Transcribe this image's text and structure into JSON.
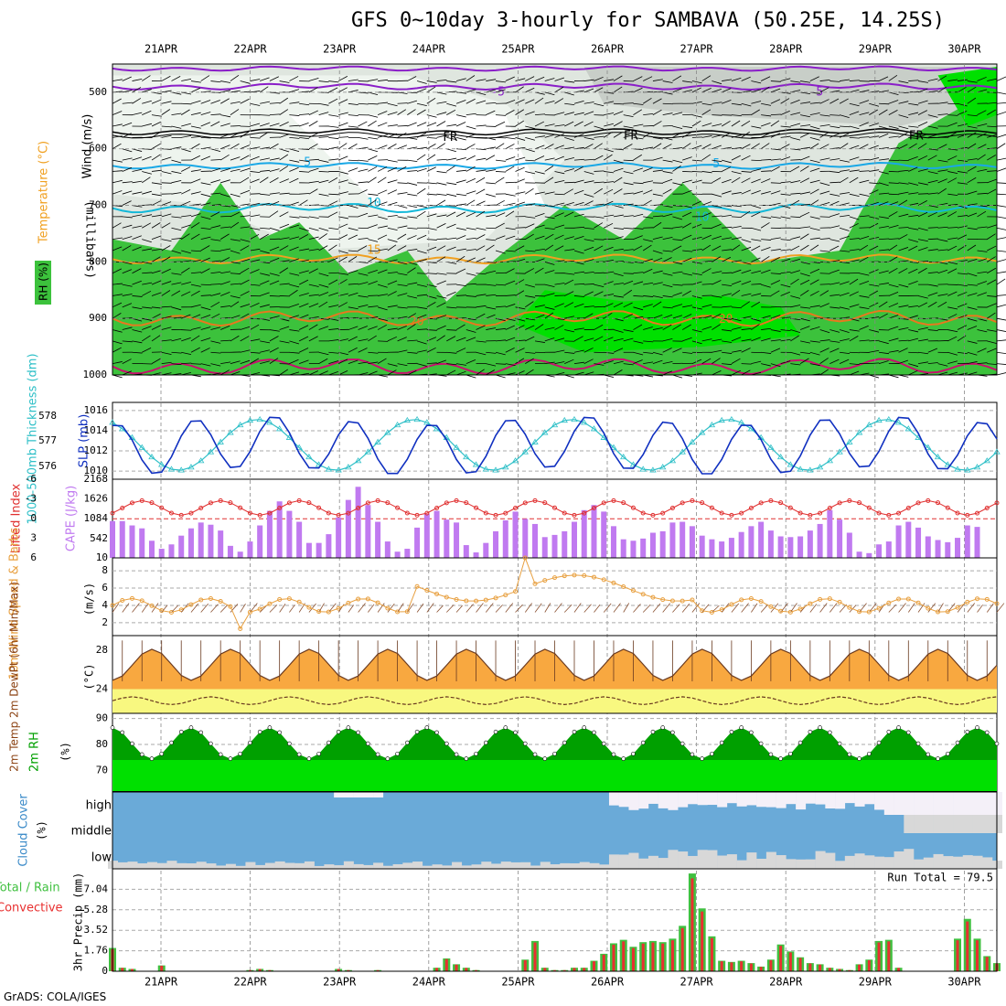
{
  "title": "GFS 0~10day 3-hourly for SAMBAVA (50.25E, 14.25S)",
  "footer": "GrADS: COLA/IGES",
  "colors": {
    "purple": "#8a1ec8",
    "cyan": "#19a8e6",
    "cyan2": "#12b8d8",
    "orange": "#f0a020",
    "darkorange": "#e8781e",
    "magenta": "#c8106e",
    "rh_green": "#3cc23c",
    "rh_bright": "#00e000",
    "rh_gray": "#c8d0c8",
    "rh_pale": "#e6f0e6",
    "cloud_blue": "#6aaad8",
    "cloud_gray": "#d8d8d8",
    "cape_bar": "#c07af0",
    "li_red": "#e03030",
    "slp_blue": "#1030c0",
    "thick_cyan": "#30c0c8",
    "wind_orange": "#e8a040",
    "temp_fill": "#f8a840",
    "dew_fill": "#f8f880",
    "rh2m_dark": "#00a000",
    "rh2m_light": "#00e000",
    "precip_green": "#40c040",
    "precip_red": "#e83030"
  },
  "chart_data": {
    "type": "meteogram",
    "dates": [
      "21APR",
      "22APR",
      "23APR",
      "24APR",
      "25APR",
      "26APR",
      "27APR",
      "28APR",
      "29APR",
      "30APR"
    ],
    "panels": [
      {
        "type": "heatmap",
        "name": "upper_air",
        "ylabel": "(millibars)",
        "yticks": [
          500,
          600,
          700,
          800,
          900,
          1000
        ],
        "ylim": [
          1000,
          450
        ],
        "legend": [
          "Wind (m/s)",
          "Temperature (°C)",
          "RH (%)"
        ],
        "contour_labels": [
          {
            "text": "-5",
            "time": 4.05,
            "p": 500,
            "color": "purple"
          },
          {
            "text": "-5",
            "time": 7.4,
            "p": 500,
            "color": "purple"
          },
          {
            "text": "FR",
            "time": 3.55,
            "p": 580,
            "color": "black"
          },
          {
            "text": "FR",
            "time": 5.45,
            "p": 578,
            "color": "black"
          },
          {
            "text": "FR",
            "time": 8.45,
            "p": 578,
            "color": "black"
          },
          {
            "text": "5",
            "time": 2.05,
            "p": 625,
            "color": "cyan"
          },
          {
            "text": "5",
            "time": 6.35,
            "p": 627,
            "color": "cyan"
          },
          {
            "text": "10",
            "time": 2.75,
            "p": 697,
            "color": "cyan2"
          },
          {
            "text": "10",
            "time": 6.2,
            "p": 722,
            "color": "cyan2"
          },
          {
            "text": "15",
            "time": 2.75,
            "p": 780,
            "color": "orange"
          },
          {
            "text": "20",
            "time": 3.2,
            "p": 906,
            "color": "darkorange"
          },
          {
            "text": "20",
            "time": 6.45,
            "p": 902,
            "color": "darkorange"
          }
        ]
      },
      {
        "type": "line",
        "name": "slp_thickness",
        "ylabel": "SLP (mb)",
        "ylabel2": "1000-500mb Thickness (dm)",
        "yticks": [
          1010,
          1012,
          1014,
          1016
        ],
        "yticks2": [
          576,
          577,
          578
        ]
      },
      {
        "type": "bar",
        "name": "cape_li",
        "ylabel": "CAPE (J/kg)",
        "ylabel2": "Lifted Index",
        "yticks": [
          10,
          542,
          1084,
          1626,
          2168
        ],
        "yticks2": [
          6,
          3,
          0,
          -3,
          -6
        ],
        "cape": [
          1020,
          1020,
          900,
          820,
          480,
          260,
          380,
          620,
          820,
          980,
          920,
          760,
          340,
          180,
          460,
          900,
          1300,
          1560,
          1300,
          1000,
          420,
          420,
          660,
          1120,
          1600,
          1960,
          1460,
          1000,
          460,
          180,
          260,
          840,
          1220,
          1300,
          1060,
          980,
          360,
          160,
          420,
          740,
          1040,
          1280,
          1080,
          940,
          580,
          640,
          740,
          1000,
          1320,
          1460,
          1280,
          880,
          520,
          480,
          540,
          700,
          740,
          980,
          1000,
          880,
          620,
          520,
          460,
          560,
          720,
          880,
          1000,
          760,
          600,
          580,
          600,
          760,
          940,
          1320,
          1060,
          700,
          180,
          140,
          380,
          460,
          900,
          1000,
          840,
          600,
          500,
          440,
          560,
          900,
          860
        ]
      },
      {
        "type": "line",
        "name": "wind10m",
        "ylabel": "10m Wind Speed & Barbs",
        "yunit": "(m/s)",
        "yticks": [
          2,
          4,
          6,
          8
        ]
      },
      {
        "type": "area",
        "name": "temp2m",
        "ylabel": "2m Temp 2m DewPt (6hr Min/Max)",
        "yunit": "(°C)",
        "yticks": [
          24,
          28
        ]
      },
      {
        "type": "area",
        "name": "rh2m",
        "ylabel": "2m RH",
        "yunit": "(%)",
        "yticks": [
          70,
          80,
          90
        ]
      },
      {
        "type": "area",
        "name": "cloud",
        "ylabel": "Cloud Cover",
        "yunit": "(%)",
        "yticks": [
          "high",
          "middle",
          "low"
        ]
      },
      {
        "type": "bar",
        "name": "precip",
        "ylabel": "3hr Precip (mm)",
        "legend": [
          "Total / Rain",
          "Convective"
        ],
        "yticks": [
          0,
          1.76,
          3.52,
          5.28,
          7.04
        ],
        "run_total": "Run Total = 79.5",
        "values": [
          2.0,
          0.3,
          0.2,
          0,
          0,
          0.5,
          0,
          0,
          0,
          0,
          0,
          0,
          0,
          0,
          0.1,
          0.2,
          0.1,
          0,
          0,
          0,
          0,
          0,
          0,
          0.2,
          0.1,
          0,
          0,
          0.1,
          0,
          0,
          0,
          0,
          0,
          0.3,
          1.1,
          0.6,
          0.3,
          0.1,
          0,
          0,
          0,
          0,
          1.0,
          2.6,
          0.3,
          0.1,
          0.1,
          0.3,
          0.3,
          0.9,
          1.5,
          2.4,
          2.7,
          2.1,
          2.5,
          2.6,
          2.5,
          2.8,
          3.9,
          8.4,
          5.4,
          3.0,
          0.9,
          0.8,
          0.9,
          0.7,
          0.4,
          1.0,
          2.3,
          1.7,
          1.2,
          0.7,
          0.6,
          0.3,
          0.2,
          0.1,
          0.6,
          1.0,
          2.6,
          2.7,
          0.3,
          0,
          0,
          0,
          0,
          0,
          2.8,
          4.5,
          2.8,
          1.3,
          0.7
        ]
      }
    ]
  }
}
